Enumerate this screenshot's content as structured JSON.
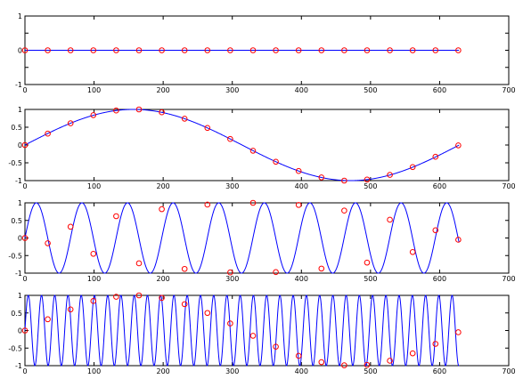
{
  "figure": {
    "background": "#ffffff",
    "line_color": "#0000ff",
    "marker_color": "#ff0000",
    "marker_shape": "circle-open"
  },
  "chart_data": [
    {
      "type": "line",
      "xlim": [
        0,
        700
      ],
      "ylim": [
        -1,
        1
      ],
      "xticks": [
        0,
        100,
        200,
        300,
        400,
        500,
        600,
        700
      ],
      "yticks": [
        -1,
        -0.5,
        0,
        0.5,
        1
      ],
      "xtick_labels": [
        "0",
        "100",
        "200",
        "300",
        "400",
        "500",
        "600",
        "700"
      ],
      "ytick_labels": [
        "-1",
        "",
        "0",
        "",
        "1"
      ],
      "grid": false,
      "series": [
        {
          "kind": "line",
          "x_range": [
            0,
            628
          ],
          "function": "y = 0"
        },
        {
          "kind": "markers",
          "x": [
            0,
            33,
            66,
            99,
            132,
            165,
            198,
            231,
            264,
            297,
            330,
            363,
            396,
            429,
            462,
            495,
            528,
            561,
            594,
            627
          ],
          "y": [
            0,
            0,
            0,
            0,
            0,
            0,
            0,
            0,
            0,
            0,
            0,
            0,
            0,
            0,
            0,
            0,
            0,
            0,
            0,
            0
          ]
        }
      ]
    },
    {
      "type": "line",
      "xlim": [
        0,
        700
      ],
      "ylim": [
        -1,
        1
      ],
      "xticks": [
        0,
        100,
        200,
        300,
        400,
        500,
        600,
        700
      ],
      "yticks": [
        -1,
        -0.5,
        0,
        0.5,
        1
      ],
      "xtick_labels": [
        "0",
        "100",
        "200",
        "300",
        "400",
        "500",
        "600",
        "700"
      ],
      "ytick_labels": [
        "-1",
        "-0.5",
        "0",
        "0.5",
        "1"
      ],
      "grid": false,
      "series": [
        {
          "kind": "line",
          "x_range": [
            0,
            628
          ],
          "function": "y = sin(x / 100)"
        },
        {
          "kind": "markers",
          "x": [
            0,
            33,
            66,
            99,
            132,
            165,
            198,
            231,
            264,
            297,
            330,
            363,
            396,
            429,
            462,
            495,
            528,
            561,
            594,
            627
          ],
          "y": [
            0,
            0.32,
            0.61,
            0.84,
            0.97,
            1.0,
            0.92,
            0.74,
            0.48,
            0.17,
            -0.16,
            -0.47,
            -0.73,
            -0.91,
            -1.0,
            -0.97,
            -0.84,
            -0.62,
            -0.33,
            -0.01
          ]
        }
      ]
    },
    {
      "type": "line",
      "xlim": [
        0,
        700
      ],
      "ylim": [
        -1,
        1
      ],
      "xticks": [
        0,
        100,
        200,
        300,
        400,
        500,
        600,
        700
      ],
      "yticks": [
        -1,
        -0.5,
        0,
        0.5,
        1
      ],
      "xtick_labels": [
        "0",
        "100",
        "200",
        "300",
        "400",
        "500",
        "600",
        "700"
      ],
      "ytick_labels": [
        "-1",
        "-0.5",
        "0",
        "0.5",
        "1"
      ],
      "grid": false,
      "series": [
        {
          "kind": "line",
          "x_range": [
            0,
            628
          ],
          "function": "y = sin(x / 10.5)"
        },
        {
          "kind": "markers",
          "x": [
            0,
            33,
            66,
            99,
            132,
            165,
            198,
            231,
            264,
            297,
            330,
            363,
            396,
            429,
            462,
            495,
            528,
            561,
            594,
            627
          ],
          "y": [
            0,
            -0.15,
            0.32,
            -0.45,
            0.62,
            -0.72,
            0.82,
            -0.88,
            0.95,
            -0.98,
            1.0,
            -0.97,
            0.94,
            -0.87,
            0.78,
            -0.7,
            0.52,
            -0.4,
            0.22,
            -0.05
          ]
        }
      ]
    },
    {
      "type": "line",
      "xlim": [
        0,
        700
      ],
      "ylim": [
        -1,
        1
      ],
      "xticks": [
        0,
        100,
        200,
        300,
        400,
        500,
        600,
        700
      ],
      "yticks": [
        -1,
        -0.5,
        0,
        0.5,
        1
      ],
      "xtick_labels": [
        "0",
        "100",
        "200",
        "300",
        "400",
        "500",
        "600",
        "700"
      ],
      "ytick_labels": [
        "-1",
        "-0.5",
        "0",
        "0.5",
        "1"
      ],
      "grid": false,
      "series": [
        {
          "kind": "line",
          "x_range": [
            0,
            628
          ],
          "function": "y = sin(x / 3.05)"
        },
        {
          "kind": "markers",
          "x": [
            0,
            33,
            66,
            99,
            132,
            165,
            198,
            231,
            264,
            297,
            330,
            363,
            396,
            429,
            462,
            495,
            528,
            561,
            594,
            627
          ],
          "y": [
            0,
            0.32,
            0.6,
            0.84,
            0.96,
            1.0,
            0.93,
            0.75,
            0.5,
            0.2,
            -0.15,
            -0.46,
            -0.72,
            -0.9,
            -0.99,
            -0.98,
            -0.86,
            -0.65,
            -0.38,
            -0.05
          ]
        }
      ]
    }
  ]
}
